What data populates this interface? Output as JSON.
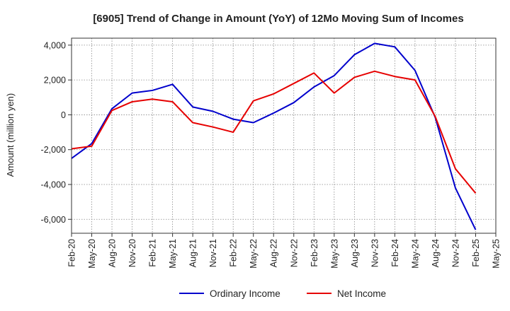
{
  "chart_data": {
    "type": "line",
    "title": "[6905]  Trend of Change in Amount (YoY) of 12Mo Moving Sum of Incomes",
    "ylabel": "Amount (million yen)",
    "xlabel": "",
    "ylim": [
      -6800,
      4400
    ],
    "yticks": [
      4000,
      2000,
      0,
      -2000,
      -4000,
      -6000
    ],
    "ytick_labels": [
      "4,000",
      "2,000",
      "0",
      "-2,000",
      "-4,000",
      "-6,000"
    ],
    "x": [
      "Feb-20",
      "May-20",
      "Aug-20",
      "Nov-20",
      "Feb-21",
      "May-21",
      "Aug-21",
      "Nov-21",
      "Feb-22",
      "May-22",
      "Aug-22",
      "Nov-22",
      "Feb-23",
      "May-23",
      "Aug-23",
      "Nov-23",
      "Feb-24",
      "May-24",
      "Aug-24",
      "Nov-24",
      "Feb-25",
      "May-25"
    ],
    "grid": true,
    "legend_position": "bottom",
    "series": [
      {
        "name": "Ordinary Income",
        "color": "#0000cc",
        "values": [
          -2500,
          -1650,
          350,
          1250,
          1400,
          1750,
          450,
          200,
          -250,
          -450,
          100,
          700,
          1600,
          2250,
          3450,
          4100,
          3900,
          2550,
          -150,
          -4200,
          -6600,
          null
        ]
      },
      {
        "name": "Net Income",
        "color": "#e60000",
        "values": [
          -1950,
          -1800,
          250,
          750,
          900,
          750,
          -450,
          -700,
          -1000,
          800,
          1200,
          1800,
          2400,
          1250,
          2150,
          2500,
          2200,
          2000,
          -100,
          -3100,
          -4500,
          null
        ]
      }
    ]
  }
}
